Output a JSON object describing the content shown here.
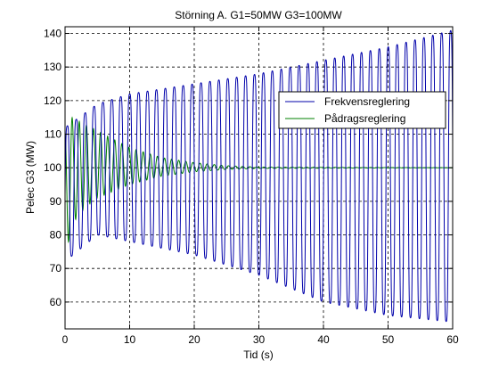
{
  "chart_data": {
    "type": "line",
    "title": "Störning A. G1=50MW G3=100MW",
    "xlabel": "Tid (s)",
    "ylabel": "Pelec G3 (MW)",
    "xlim": [
      0,
      60
    ],
    "ylim": [
      52,
      142
    ],
    "xticks": [
      0,
      10,
      20,
      30,
      40,
      50,
      60
    ],
    "yticks": [
      60,
      70,
      80,
      90,
      100,
      110,
      120,
      130,
      140
    ],
    "grid": true,
    "legend_position": "upper-right",
    "series": [
      {
        "name": "Frekvensreglering",
        "color": "#0000aa",
        "model": "sustained growing oscillation around 100 MW, period about 1.38 s",
        "envelope_time": [
          0,
          5,
          10,
          20,
          30,
          40,
          50,
          60
        ],
        "envelope_max": [
          112,
          119,
          122,
          125,
          128,
          132,
          136,
          141
        ],
        "envelope_min": [
          72,
          80,
          78,
          74,
          68,
          60,
          56,
          54
        ]
      },
      {
        "name": "Pådragsreglering",
        "color": "#008000",
        "model": "damped oscillation settling at 100 MW by about 30 s",
        "envelope_time": [
          0,
          1,
          3,
          5,
          10,
          15,
          20,
          25,
          30,
          60
        ],
        "envelope_max": [
          110,
          115,
          113,
          111,
          106,
          103,
          101.5,
          100.6,
          100.2,
          100
        ],
        "envelope_min": [
          72,
          83,
          88,
          91,
          95,
          97.5,
          98.8,
          99.5,
          99.8,
          100
        ]
      }
    ]
  }
}
